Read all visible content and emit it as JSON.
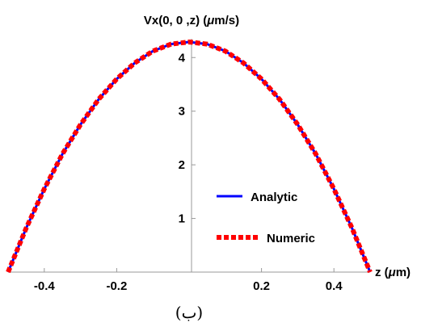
{
  "chart_data": {
    "type": "line",
    "xlabel_prefix": "z (",
    "xlabel_unit_mu": "μ",
    "xlabel_suffix": "m)",
    "ylabel_prefix": "Vx(0, 0 ,z) (",
    "ylabel_unit_mu": "μ",
    "ylabel_suffix": "m/s)",
    "xlim": [
      -0.5,
      0.5
    ],
    "ylim": [
      0,
      4.35
    ],
    "x_ticks": [
      -0.4,
      -0.2,
      0.2,
      0.4
    ],
    "x_tick_labels": [
      "-0.4",
      "-0.2",
      "0.2",
      "0.4"
    ],
    "y_ticks": [
      1,
      2,
      3,
      4
    ],
    "y_tick_labels": [
      "1",
      "2",
      "3",
      "4"
    ],
    "legend_position": "lower-right",
    "series": [
      {
        "name": "Analytic",
        "color": "#0000ff",
        "style": "solid",
        "x": [
          -0.5,
          -0.45,
          -0.4,
          -0.35,
          -0.3,
          -0.25,
          -0.2,
          -0.15,
          -0.1,
          -0.05,
          0.0,
          0.05,
          0.1,
          0.15,
          0.2,
          0.25,
          0.3,
          0.35,
          0.4,
          0.45,
          0.5
        ],
        "y": [
          0.0,
          0.82,
          1.55,
          2.2,
          2.75,
          3.22,
          3.6,
          3.9,
          4.12,
          4.25,
          4.29,
          4.25,
          4.12,
          3.9,
          3.6,
          3.22,
          2.75,
          2.2,
          1.55,
          0.82,
          0.0
        ]
      },
      {
        "name": "Numeric",
        "color": "#ff0000",
        "style": "dashed",
        "x": [
          -0.5,
          -0.45,
          -0.4,
          -0.35,
          -0.3,
          -0.25,
          -0.2,
          -0.15,
          -0.1,
          -0.05,
          0.0,
          0.05,
          0.1,
          0.15,
          0.2,
          0.25,
          0.3,
          0.35,
          0.4,
          0.45,
          0.5
        ],
        "y": [
          0.0,
          0.82,
          1.55,
          2.2,
          2.75,
          3.22,
          3.6,
          3.9,
          4.12,
          4.25,
          4.29,
          4.25,
          4.12,
          3.9,
          3.6,
          3.22,
          2.75,
          2.2,
          1.55,
          0.82,
          0.0
        ]
      }
    ]
  },
  "caption": "(ب)"
}
